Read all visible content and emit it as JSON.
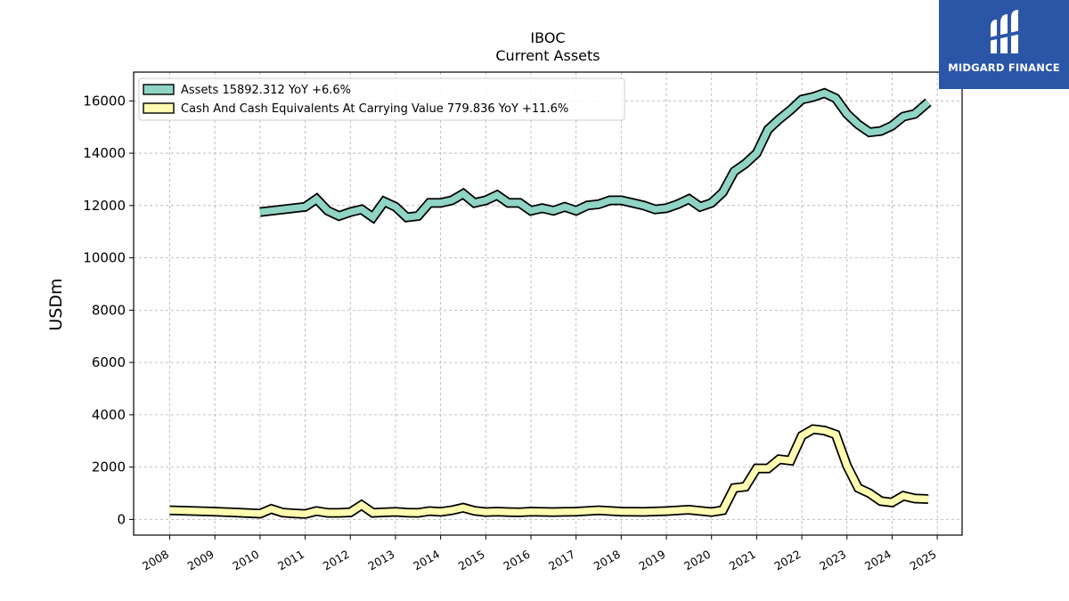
{
  "brand": {
    "name": "MIDGARD FINANCE",
    "color": "#2b56a8"
  },
  "chart_data": {
    "type": "line",
    "title": "IBOC",
    "subtitle": "Current  Assets",
    "xlabel": "",
    "ylabel": "USDm",
    "xlim": [
      2007.2,
      2025.55
    ],
    "ylim": [
      -600,
      17100
    ],
    "x_ticks": [
      2008,
      2009,
      2010,
      2011,
      2012,
      2013,
      2014,
      2015,
      2016,
      2017,
      2018,
      2019,
      2020,
      2021,
      2022,
      2023,
      2024,
      2025
    ],
    "x_tick_labels": [
      "2008",
      "2009",
      "2010",
      "2011",
      "2012",
      "2013",
      "2014",
      "2015",
      "2016",
      "2017",
      "2018",
      "2019",
      "2020",
      "2021",
      "2022",
      "2023",
      "2024",
      "2025"
    ],
    "y_ticks": [
      0,
      2000,
      4000,
      6000,
      8000,
      10000,
      12000,
      14000,
      16000
    ],
    "y_tick_labels": [
      "0",
      "2000",
      "4000",
      "6000",
      "8000",
      "10000",
      "12000",
      "14000",
      "16000"
    ],
    "grid": true,
    "legend_position": "top-left",
    "series": [
      {
        "name": "Assets  15892.312 YoY +6.6%",
        "color": "#8fd4c4",
        "points": [
          [
            2010.0,
            11750
          ],
          [
            2011.0,
            11950
          ],
          [
            2011.25,
            12250
          ],
          [
            2011.5,
            11800
          ],
          [
            2011.75,
            11600
          ],
          [
            2012.0,
            11750
          ],
          [
            2012.25,
            11850
          ],
          [
            2012.5,
            11550
          ],
          [
            2012.75,
            12150
          ],
          [
            2013.0,
            11950
          ],
          [
            2013.25,
            11550
          ],
          [
            2013.5,
            11600
          ],
          [
            2013.75,
            12100
          ],
          [
            2014.0,
            12100
          ],
          [
            2014.25,
            12200
          ],
          [
            2014.5,
            12450
          ],
          [
            2014.75,
            12100
          ],
          [
            2015.0,
            12200
          ],
          [
            2015.25,
            12400
          ],
          [
            2015.5,
            12100
          ],
          [
            2015.75,
            12100
          ],
          [
            2016.0,
            11800
          ],
          [
            2016.25,
            11900
          ],
          [
            2016.5,
            11800
          ],
          [
            2016.75,
            11950
          ],
          [
            2017.0,
            11800
          ],
          [
            2017.25,
            12000
          ],
          [
            2017.5,
            12050
          ],
          [
            2017.75,
            12200
          ],
          [
            2018.0,
            12200
          ],
          [
            2018.25,
            12100
          ],
          [
            2018.5,
            12000
          ],
          [
            2018.75,
            11850
          ],
          [
            2019.0,
            11900
          ],
          [
            2019.25,
            12050
          ],
          [
            2019.5,
            12250
          ],
          [
            2019.75,
            11950
          ],
          [
            2020.0,
            12100
          ],
          [
            2020.25,
            12500
          ],
          [
            2020.5,
            13300
          ],
          [
            2020.75,
            13600
          ],
          [
            2021.0,
            14000
          ],
          [
            2021.25,
            14900
          ],
          [
            2021.5,
            15300
          ],
          [
            2021.75,
            15650
          ],
          [
            2022.0,
            16050
          ],
          [
            2022.25,
            16150
          ],
          [
            2022.5,
            16300
          ],
          [
            2022.75,
            16100
          ],
          [
            2023.0,
            15500
          ],
          [
            2023.25,
            15100
          ],
          [
            2023.5,
            14800
          ],
          [
            2023.75,
            14850
          ],
          [
            2024.0,
            15050
          ],
          [
            2024.25,
            15400
          ],
          [
            2024.5,
            15500
          ],
          [
            2024.8,
            15950
          ]
        ]
      },
      {
        "name": "Cash And Cash Equivalents At Carrying Value  779.836 YoY +11.6%",
        "color": "#fffbb0",
        "points": [
          [
            2008.0,
            350
          ],
          [
            2009.0,
            300
          ],
          [
            2010.0,
            220
          ],
          [
            2010.25,
            400
          ],
          [
            2010.5,
            260
          ],
          [
            2010.75,
            230
          ],
          [
            2011.0,
            210
          ],
          [
            2011.25,
            320
          ],
          [
            2011.5,
            250
          ],
          [
            2011.75,
            250
          ],
          [
            2012.0,
            270
          ],
          [
            2012.25,
            550
          ],
          [
            2012.5,
            250
          ],
          [
            2012.75,
            270
          ],
          [
            2013.0,
            290
          ],
          [
            2013.25,
            260
          ],
          [
            2013.5,
            250
          ],
          [
            2013.75,
            320
          ],
          [
            2014.0,
            290
          ],
          [
            2014.25,
            350
          ],
          [
            2014.5,
            450
          ],
          [
            2014.75,
            330
          ],
          [
            2015.0,
            280
          ],
          [
            2015.25,
            300
          ],
          [
            2015.5,
            280
          ],
          [
            2015.75,
            270
          ],
          [
            2016.0,
            300
          ],
          [
            2016.5,
            280
          ],
          [
            2017.0,
            300
          ],
          [
            2017.5,
            350
          ],
          [
            2018.0,
            300
          ],
          [
            2018.5,
            290
          ],
          [
            2019.0,
            320
          ],
          [
            2019.5,
            370
          ],
          [
            2020.0,
            280
          ],
          [
            2020.25,
            350
          ],
          [
            2020.5,
            1200
          ],
          [
            2020.75,
            1250
          ],
          [
            2021.0,
            1950
          ],
          [
            2021.25,
            1950
          ],
          [
            2021.5,
            2300
          ],
          [
            2021.75,
            2250
          ],
          [
            2022.0,
            3200
          ],
          [
            2022.25,
            3450
          ],
          [
            2022.5,
            3400
          ],
          [
            2022.75,
            3250
          ],
          [
            2023.0,
            2050
          ],
          [
            2023.25,
            1200
          ],
          [
            2023.5,
            1000
          ],
          [
            2023.75,
            700
          ],
          [
            2024.0,
            650
          ],
          [
            2024.25,
            900
          ],
          [
            2024.5,
            800
          ],
          [
            2024.8,
            780
          ]
        ]
      }
    ]
  }
}
